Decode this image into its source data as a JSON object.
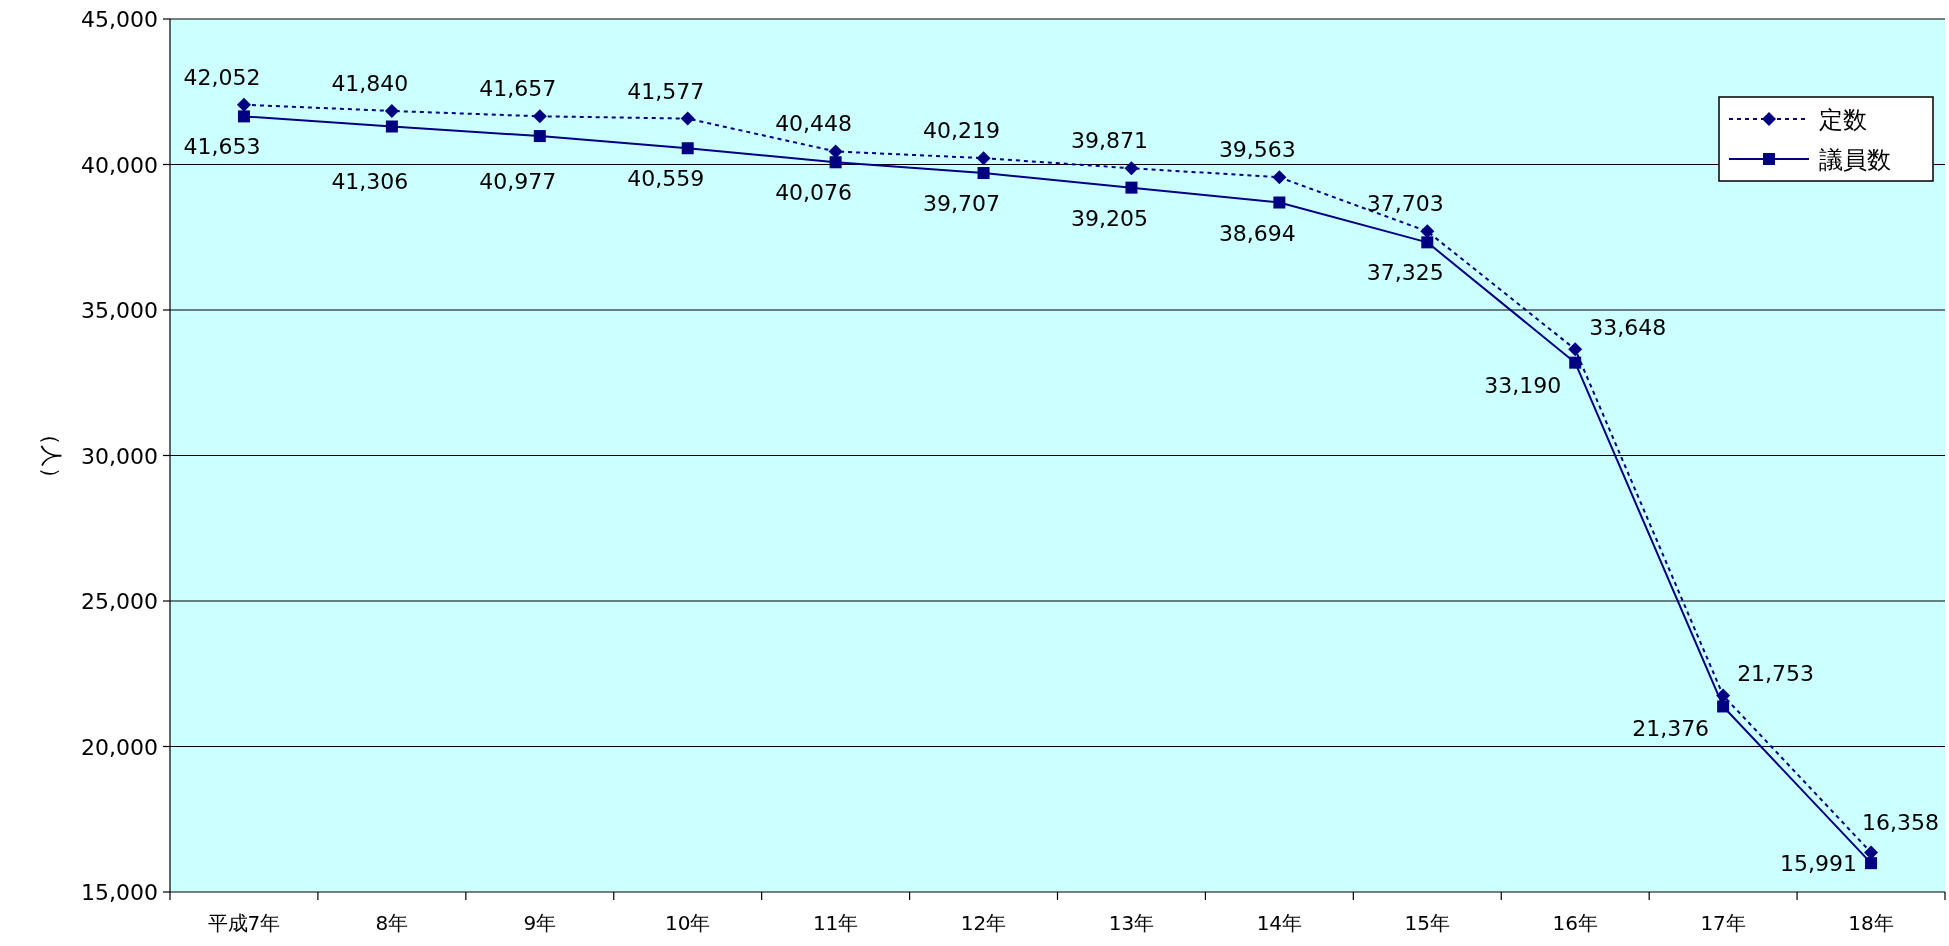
{
  "chart_data": {
    "type": "line",
    "ylabel": "（人）",
    "categories": [
      "平成7年",
      "8年",
      "9年",
      "10年",
      "11年",
      "12年",
      "13年",
      "14年",
      "15年",
      "16年",
      "17年",
      "18年"
    ],
    "series": [
      {
        "name": "定数",
        "color": "#000080",
        "marker": "diamond",
        "line_style": "dotted",
        "values": [
          42052,
          41840,
          41657,
          41577,
          40448,
          40219,
          39871,
          39563,
          37703,
          33648,
          21753,
          16358
        ],
        "value_labels": [
          "42,052",
          "41,840",
          "41,657",
          "41,577",
          "40,448",
          "40,219",
          "39,871",
          "39,563",
          "37,703",
          "33,648",
          "21,753",
          "16,358"
        ]
      },
      {
        "name": "議員数",
        "color": "#000080",
        "marker": "square",
        "line_style": "solid",
        "values": [
          41653,
          41306,
          40977,
          40559,
          40076,
          39707,
          39205,
          38694,
          37325,
          33190,
          21376,
          15991
        ],
        "value_labels": [
          "41,653",
          "41,306",
          "40,977",
          "40,559",
          "40,076",
          "39,707",
          "39,205",
          "38,694",
          "37,325",
          "33,190",
          "21,376",
          "15,991"
        ]
      }
    ],
    "ylim": [
      15000,
      45000
    ],
    "yticks": [
      {
        "value": 15000,
        "label": "15,000"
      },
      {
        "value": 20000,
        "label": "20,000"
      },
      {
        "value": 25000,
        "label": "25,000"
      },
      {
        "value": 30000,
        "label": "30,000"
      },
      {
        "value": 35000,
        "label": "35,000"
      },
      {
        "value": 40000,
        "label": "40,000"
      },
      {
        "value": 45000,
        "label": "45,000"
      }
    ],
    "grid": "y",
    "legend": "top right"
  }
}
